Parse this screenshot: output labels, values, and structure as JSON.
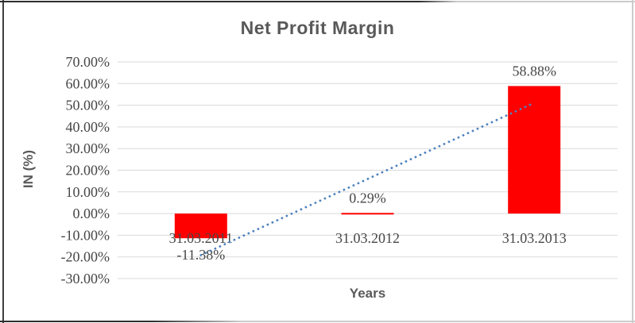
{
  "chart_data": {
    "type": "bar",
    "title": "Net Profit Margin",
    "xlabel": "Years",
    "ylabel": "IN (%)",
    "categories": [
      "31.03.2011",
      "31.03.2012",
      "31.03.2013"
    ],
    "values": [
      -11.38,
      0.29,
      58.88
    ],
    "data_labels": [
      "-11.38%",
      "0.29%",
      "58.88%"
    ],
    "ylim": [
      -30,
      70
    ],
    "yticks": [
      70,
      60,
      50,
      40,
      30,
      20,
      10,
      0,
      -10,
      -20,
      -30
    ],
    "ytick_labels": [
      "70.00%",
      "60.00%",
      "50.00%",
      "40.00%",
      "30.00%",
      "20.00%",
      "10.00%",
      "0.00%",
      "-10.00%",
      "-20.00%",
      "-30.00%"
    ],
    "grid": true,
    "legend": "none",
    "bar_color": "#ff0000",
    "gridline_color": "#d9d9d9",
    "label_color": "#474747",
    "title_color": "#595959",
    "trendline": {
      "type": "linear",
      "style": "dotted",
      "color": "#4e81bd",
      "start_pct": -19.2,
      "end_pct": 51.1
    }
  }
}
